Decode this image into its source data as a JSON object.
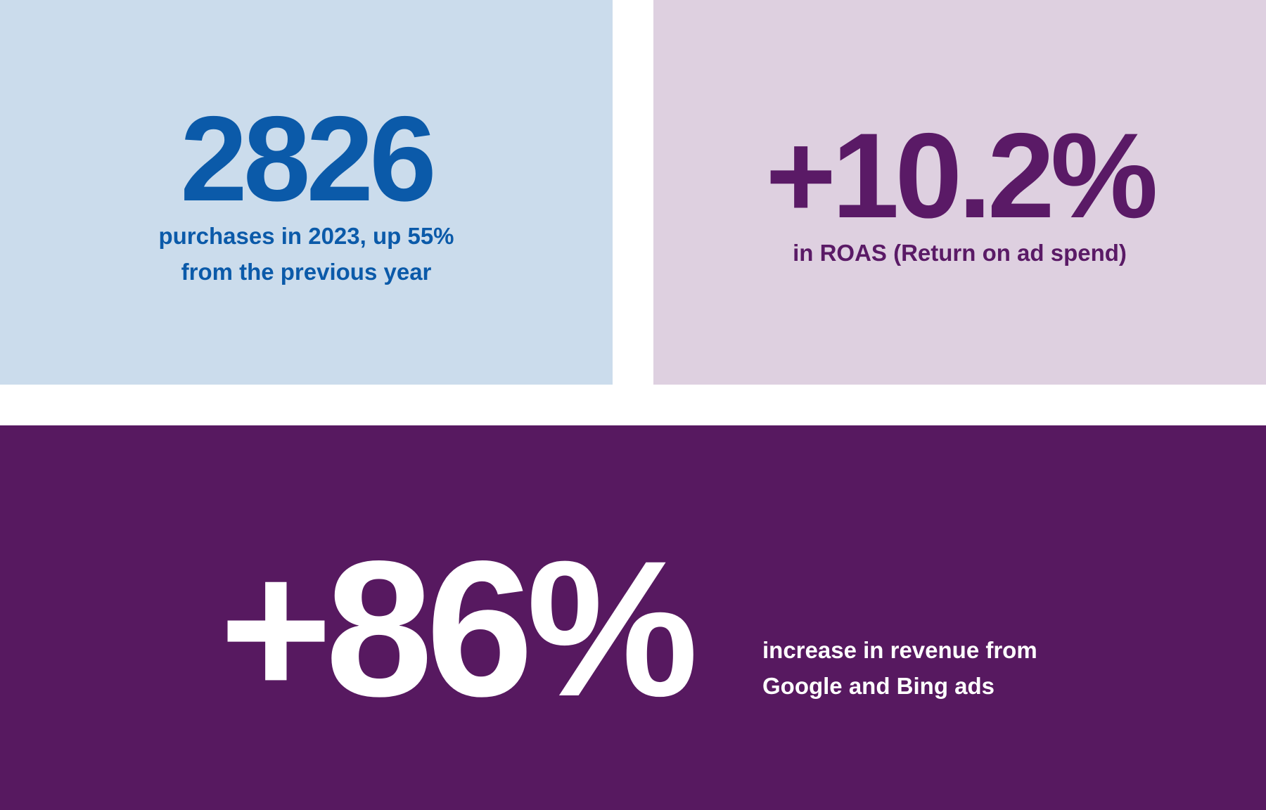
{
  "cards": {
    "purchases": {
      "value": "2826",
      "caption_line1": "purchases in 2023, up 55%",
      "caption_line2": "from the previous year",
      "bg_color": "#cbdcec",
      "text_color": "#0b5aa9"
    },
    "roas": {
      "value": "+10.2%",
      "caption": "in ROAS (Return on ad spend)",
      "bg_color": "#ded0e0",
      "text_color": "#5a1a66"
    },
    "revenue": {
      "value": "+86%",
      "caption_line1": "increase in revenue from",
      "caption_line2": "Google and Bing ads",
      "bg_color": "#571960",
      "text_color": "#ffffff"
    }
  }
}
